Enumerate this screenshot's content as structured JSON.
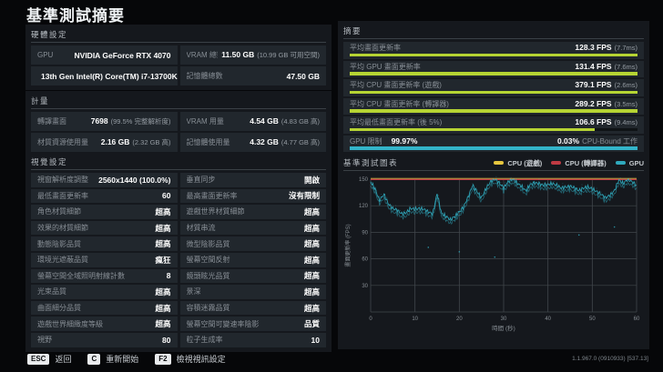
{
  "page_title": "基準測試摘要",
  "colors": {
    "bar_green": "#b6d433",
    "bar_cyan": "#33b5ca",
    "legend_yellow": "#e6c63e",
    "legend_red": "#bf3a43",
    "legend_teal": "#2fa9bd",
    "grid": "#41474c",
    "tick_text": "#868d93"
  },
  "hardware": {
    "title": "硬體設定",
    "cells": [
      {
        "label": "GPU",
        "value": "NVIDIA GeForce RTX 4070",
        "sub": ""
      },
      {
        "label": "VRAM 總數",
        "value": "11.50 GB",
        "sub": "(10.99 GB 可用空間)"
      },
      {
        "label": "CPU",
        "value": "13th Gen Intel(R) Core(TM) i7-13700K",
        "sub": ""
      },
      {
        "label": "記憶體總數",
        "value": "47.50 GB",
        "sub": ""
      }
    ]
  },
  "metrics": {
    "title": "計量",
    "cells": [
      {
        "label": "轉譯畫面",
        "value": "7698",
        "sub": "(99.5% 完整解析度)"
      },
      {
        "label": "VRAM 用量",
        "value": "4.54 GB",
        "sub": "(4.83 GB 高)"
      },
      {
        "label": "材質資源使用量",
        "value": "2.16 GB",
        "sub": "(2.32 GB 高)"
      },
      {
        "label": "記憶體使用量",
        "value": "4.32 GB",
        "sub": "(4.77 GB 高)"
      }
    ]
  },
  "visual_settings": {
    "title": "視覺設定",
    "cells": [
      {
        "label": "視窗解析度調整",
        "value": "2560x1440 (100.0%)",
        "sub": ""
      },
      {
        "label": "垂直同步",
        "value": "開啟",
        "sub": ""
      },
      {
        "label": "最低畫面更新率",
        "value": "60",
        "sub": ""
      },
      {
        "label": "最高畫面更新率",
        "value": "沒有限制",
        "sub": ""
      },
      {
        "label": "角色材質細節",
        "value": "超高",
        "sub": ""
      },
      {
        "label": "遊戲世界材質細節",
        "value": "超高",
        "sub": ""
      },
      {
        "label": "效果的材質細節",
        "value": "超高",
        "sub": ""
      },
      {
        "label": "材質串流",
        "value": "超高",
        "sub": ""
      },
      {
        "label": "動態陰影品質",
        "value": "超高",
        "sub": ""
      },
      {
        "label": "微型陰影品質",
        "value": "超高",
        "sub": ""
      },
      {
        "label": "環境光遮蔽品質",
        "value": "瘋狂",
        "sub": ""
      },
      {
        "label": "螢幕空間反射",
        "value": "超高",
        "sub": ""
      },
      {
        "label": "螢幕空間全域照明射線計數",
        "value": "8",
        "sub": ""
      },
      {
        "label": "鏡頭眩光品質",
        "value": "超高",
        "sub": ""
      },
      {
        "label": "光束品質",
        "value": "超高",
        "sub": ""
      },
      {
        "label": "景深",
        "value": "超高",
        "sub": ""
      },
      {
        "label": "曲面細分品質",
        "value": "超高",
        "sub": ""
      },
      {
        "label": "容積迷霧品質",
        "value": "超高",
        "sub": ""
      },
      {
        "label": "遊戲世界細緻度等級",
        "value": "超高",
        "sub": ""
      },
      {
        "label": "螢幕空間可變速率陰影",
        "value": "品質",
        "sub": ""
      },
      {
        "label": "視野",
        "value": "80",
        "sub": ""
      },
      {
        "label": "粒子生成率",
        "value": "10",
        "sub": ""
      }
    ]
  },
  "summary": {
    "title": "摘要",
    "bars": [
      {
        "label": "平均畫面更新率",
        "value": "128.3 FPS",
        "sub": "(7.7ms)",
        "pct": 100
      },
      {
        "label": "平均 GPU 畫面更新率",
        "value": "131.4 FPS",
        "sub": "(7.6ms)",
        "pct": 100
      },
      {
        "label": "平均 CPU 畫面更新率 (遊戲)",
        "value": "379.1 FPS",
        "sub": "(2.6ms)",
        "pct": 100
      },
      {
        "label": "平均 CPU 畫面更新率 (轉譯器)",
        "value": "289.2 FPS",
        "sub": "(3.5ms)",
        "pct": 100
      },
      {
        "label": "平均最低畫面更新率 (後 5%)",
        "value": "106.6 FPS",
        "sub": "(9.4ms)",
        "pct": 85
      }
    ],
    "gpu_bound": {
      "label": "GPU 限制",
      "value": "99.97%",
      "right_value": "0.03%",
      "right_label": "CPU-Bound 工作",
      "pct": 100
    }
  },
  "chart": {
    "title": "基準測試圖表",
    "legend": [
      {
        "label": "CPU (遊戲)",
        "color_key": "legend_yellow"
      },
      {
        "label": "CPU (轉譯器)",
        "color_key": "legend_red"
      },
      {
        "label": "GPU",
        "color_key": "legend_teal"
      }
    ],
    "xlabel": "時間 (秒)",
    "ylabel": "畫面更新率 (FPS)"
  },
  "chart_data": {
    "type": "line",
    "title": "基準測試圖表",
    "xlabel": "時間 (秒)",
    "ylabel": "畫面更新率 (FPS)",
    "xlim": [
      0,
      60
    ],
    "ylim": [
      0,
      150
    ],
    "x_ticks": [
      0,
      10,
      20,
      30,
      40,
      50,
      60
    ],
    "y_ticks": [
      30,
      60,
      90,
      120,
      150
    ],
    "grid": true,
    "legend_position": "top-right",
    "series": [
      {
        "name": "CPU (遊戲)",
        "color_key": "legend_yellow",
        "avg_fps": 379.1,
        "note": "above axis max, clipped flat at 150"
      },
      {
        "name": "CPU (轉譯器)",
        "color_key": "legend_red",
        "avg_fps": 289.2,
        "note": "above axis max, clipped flat at 150"
      },
      {
        "name": "GPU",
        "color_key": "legend_teal",
        "x_start": 0,
        "x_step": 1,
        "values": [
          147,
          139,
          126,
          133,
          122,
          117,
          115,
          111,
          112,
          117,
          116,
          117,
          116,
          113,
          111,
          134,
          111,
          108,
          104,
          108,
          113,
          119,
          130,
          143,
          136,
          129,
          139,
          147,
          150,
          146,
          140,
          147,
          150,
          146,
          142,
          137,
          144,
          146,
          145,
          143,
          144,
          145,
          143,
          140,
          141,
          142,
          140,
          137,
          140,
          141,
          139,
          136,
          133,
          129,
          132,
          137,
          149,
          145,
          150,
          147,
          143
        ]
      }
    ],
    "outliers": [
      [
        13,
        73
      ],
      [
        20,
        68
      ],
      [
        28,
        62
      ],
      [
        47,
        87
      ],
      [
        55,
        96
      ]
    ]
  },
  "hotkeys": [
    {
      "key": "ESC",
      "label": "返回"
    },
    {
      "key": "C",
      "label": "重新開始"
    },
    {
      "key": "F2",
      "label": "檢視視訊設定"
    }
  ],
  "footer_version": "1.1.967.0 (0910933) [537.13]"
}
